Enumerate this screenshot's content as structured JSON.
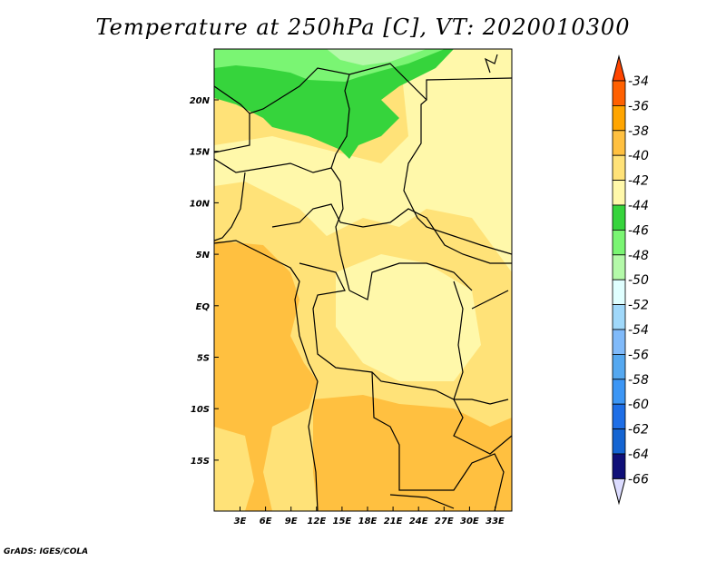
{
  "title": "Temperature at 250hPa [C], VT: 2020010300",
  "credit": "GrADS: IGES/COLA",
  "lat_labels": [
    "20N",
    "15N",
    "10N",
    "5N",
    "EQ",
    "5S",
    "10S",
    "15S"
  ],
  "lon_labels": [
    "3E",
    "6E",
    "9E",
    "12E",
    "15E",
    "18E",
    "21E",
    "24E",
    "27E",
    "30E",
    "33E"
  ],
  "colorbar": {
    "labels": [
      "-34",
      "-36",
      "-38",
      "-40",
      "-42",
      "-44",
      "-46",
      "-48",
      "-50",
      "-52",
      "-54",
      "-56",
      "-58",
      "-60",
      "-62",
      "-64",
      "-66"
    ],
    "top_color": "#ff4500",
    "bottom_color": "#dcdcff",
    "colors": [
      "#ff6000",
      "#ffa500",
      "#ffc040",
      "#ffe278",
      "#fff8aa",
      "#36d43c",
      "#7af573",
      "#b4f9a9",
      "#e0ffff",
      "#a0d8fa",
      "#80bafa",
      "#55a8f0",
      "#3c96f5",
      "#1e6ee6",
      "#1464d2",
      "#0f0f78"
    ]
  },
  "map_colors": {
    "c40": "#ffe278",
    "c42": "#fff8aa",
    "c38": "#ffc040",
    "c46": "#36d43c",
    "c48": "#7af573",
    "c50": "#b4f9a9"
  }
}
